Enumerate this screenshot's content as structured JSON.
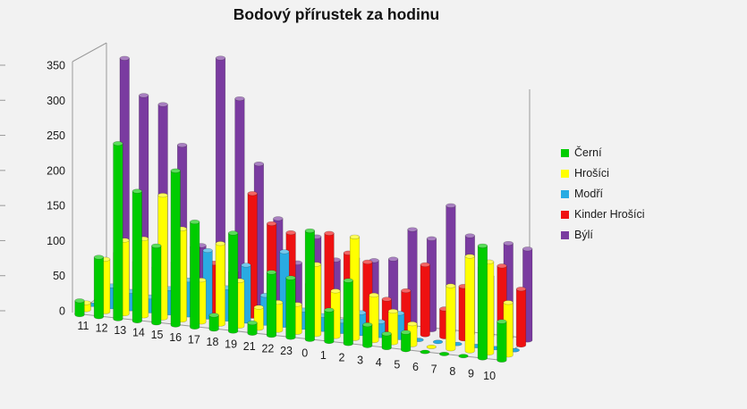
{
  "title": "Bodový přírustek za hodinu",
  "chart_data": {
    "type": "bar",
    "style": "3d-cylinder-columns",
    "title": "Bodový přírustek za hodinu",
    "xlabel": "",
    "ylabel": "",
    "ylim": [
      0,
      350
    ],
    "y_ticks": [
      0,
      50,
      100,
      150,
      200,
      250,
      300,
      350
    ],
    "grid": false,
    "legend_position": "right",
    "background_color": "#f2f2f2",
    "axis_text_color": "#1a1a1a",
    "frame_line_color": "#9a9a9a",
    "categories": [
      "11",
      "12",
      "13",
      "14",
      "15",
      "16",
      "17",
      "18",
      "19",
      "21",
      "22",
      "23",
      "0",
      "1",
      "2",
      "3",
      "4",
      "5",
      "6",
      "7",
      "8",
      "9",
      "10"
    ],
    "series": [
      {
        "name": "Černí",
        "color": "#00cc00",
        "values": [
          20,
          85,
          250,
          185,
          110,
          220,
          150,
          20,
          140,
          15,
          90,
          85,
          155,
          45,
          90,
          30,
          20,
          25,
          0,
          0,
          0,
          160,
          55
        ]
      },
      {
        "name": "Hrošíci",
        "color": "#ffff00",
        "values": [
          10,
          75,
          105,
          110,
          175,
          130,
          60,
          115,
          65,
          30,
          40,
          40,
          100,
          65,
          145,
          65,
          45,
          30,
          0,
          90,
          135,
          130,
          75
        ]
      },
      {
        "name": "Modří",
        "color": "#29abe2",
        "values": [
          0,
          30,
          25,
          20,
          35,
          50,
          95,
          45,
          80,
          40,
          105,
          25,
          20,
          15,
          30,
          20,
          35,
          0,
          0,
          0,
          0,
          0,
          0
        ]
      },
      {
        "name": "Kinder Hrošíci",
        "color": "#ee1111",
        "values": [
          0,
          70,
          60,
          55,
          65,
          90,
          70,
          60,
          175,
          135,
          125,
          55,
          130,
          105,
          95,
          45,
          60,
          100,
          40,
          75,
          105,
          110,
          80
        ]
      },
      {
        "name": "Býlí",
        "color": "#7a3ba0",
        "values": [
          0,
          340,
          290,
          280,
          225,
          85,
          355,
          300,
          210,
          135,
          75,
          115,
          85,
          90,
          90,
          95,
          140,
          130,
          180,
          140,
          85,
          135,
          130
        ]
      }
    ]
  }
}
